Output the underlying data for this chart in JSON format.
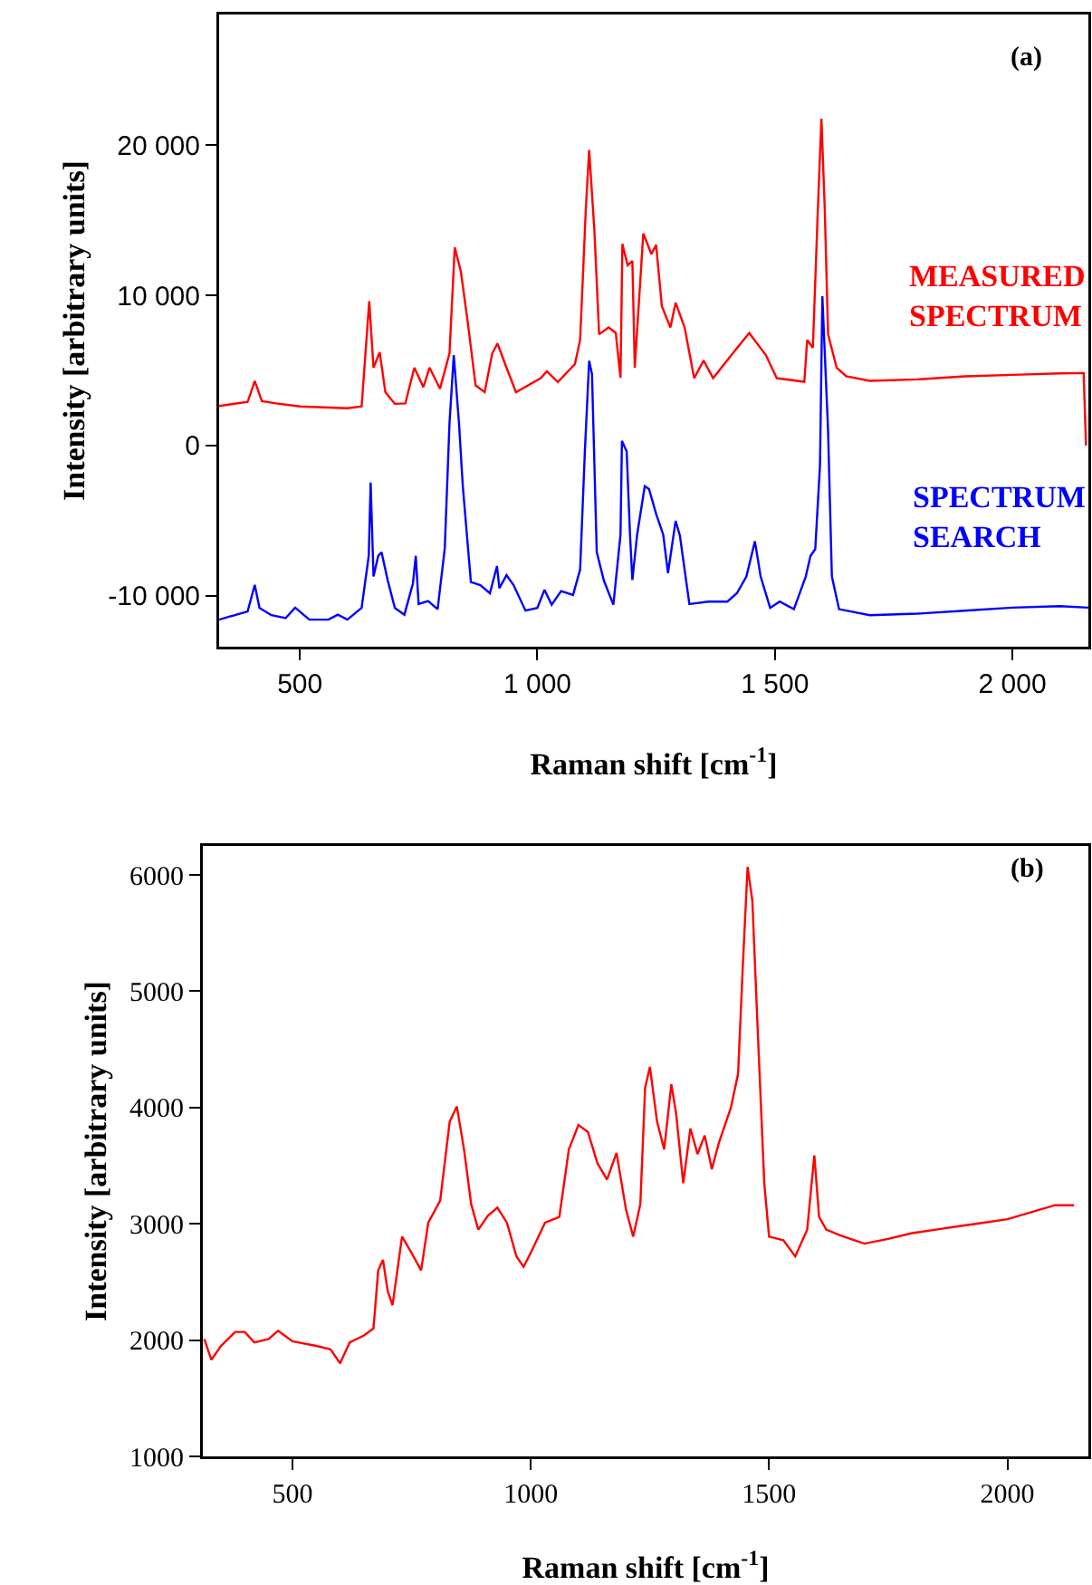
{
  "chart_data": [
    {
      "type": "line",
      "xlabel": "Raman shift [cm$^{-1}$]",
      "ylabel": "Intensity [arbitrary units]",
      "annotations": [
        "(a)"
      ],
      "xlim": [
        330,
        2160
      ],
      "ylim": [
        -13400,
        28700
      ],
      "xticks": [
        500,
        {
          "value": 1000,
          "label": "1 000"
        },
        {
          "value": 1500,
          "label": "1 500"
        },
        {
          "value": 2000,
          "label": "2 000"
        }
      ],
      "yticks": [
        {
          "value": -10000,
          "label": "-10 000"
        },
        0,
        {
          "value": 10000,
          "label": "10 000"
        },
        {
          "value": 20000,
          "label": "20 000"
        }
      ],
      "grid": false,
      "legend": false,
      "marker": "none",
      "line_style": "solid",
      "series": [
        {
          "name": "MEASURED SPECTRUM",
          "color": "#ff0000",
          "x": [
            330,
            390,
            405,
            420,
            450,
            500,
            600,
            630,
            646,
            655,
            668,
            680,
            700,
            722,
            741,
            760,
            773,
            795,
            815,
            826,
            839,
            853,
            870,
            889,
            905,
            916,
            935,
            955,
            1007,
            1020,
            1043,
            1079,
            1090,
            1102,
            1109,
            1120,
            1130,
            1150,
            1165,
            1175,
            1179,
            1190,
            1200,
            1205,
            1223,
            1240,
            1250,
            1262,
            1280,
            1291,
            1310,
            1330,
            1350,
            1370,
            1413,
            1446,
            1481,
            1504,
            1562,
            1568,
            1580,
            1590,
            1598,
            1605,
            1612,
            1630,
            1650,
            1700,
            1800,
            1900,
            2000,
            2100,
            2150,
            2155
          ],
          "values": [
            2630,
            2900,
            4300,
            2950,
            2800,
            2600,
            2480,
            2600,
            9600,
            5180,
            6200,
            3550,
            2770,
            2800,
            5180,
            3880,
            5180,
            3780,
            6140,
            13190,
            11570,
            8310,
            4000,
            3550,
            6140,
            6790,
            5180,
            3550,
            4480,
            4940,
            4220,
            5420,
            7020,
            15740,
            19680,
            14340,
            7400,
            7860,
            7500,
            4500,
            13420,
            12000,
            12290,
            5180,
            14120,
            12750,
            13360,
            9280,
            7860,
            9510,
            7860,
            4480,
            5660,
            4480,
            6200,
            7490,
            6020,
            4480,
            4240,
            7020,
            6500,
            15300,
            21760,
            15740,
            7400,
            5180,
            4610,
            4300,
            4400,
            4600,
            4700,
            4800,
            4820,
            0
          ]
        },
        {
          "name": "SPECTRUM SEARCH",
          "color": "#0000ff",
          "x": [
            330,
            390,
            405,
            415,
            440,
            470,
            490,
            520,
            560,
            580,
            600,
            630,
            645,
            649,
            655,
            665,
            672,
            685,
            700,
            720,
            738,
            744,
            750,
            770,
            790,
            805,
            815,
            824,
            835,
            843,
            860,
            880,
            900,
            915,
            920,
            935,
            950,
            975,
            1000,
            1015,
            1030,
            1050,
            1075,
            1090,
            1100,
            1109,
            1115,
            1125,
            1140,
            1160,
            1175,
            1178,
            1188,
            1195,
            1200,
            1210,
            1226,
            1235,
            1250,
            1265,
            1275,
            1291,
            1300,
            1320,
            1360,
            1400,
            1420,
            1440,
            1458,
            1470,
            1490,
            1510,
            1540,
            1565,
            1575,
            1585,
            1595,
            1600,
            1612,
            1620,
            1635,
            1700,
            1800,
            1900,
            2000,
            2100,
            2160
          ],
          "values": [
            -11600,
            -11050,
            -9280,
            -10820,
            -11300,
            -11500,
            -10800,
            -11600,
            -11600,
            -11270,
            -11600,
            -10820,
            -7350,
            -2470,
            -8730,
            -7350,
            -7110,
            -8990,
            -10820,
            -11270,
            -9190,
            -7350,
            -10560,
            -10360,
            -10900,
            -6870,
            1470,
            6020,
            1470,
            -2710,
            -9100,
            -9300,
            -9840,
            -8030,
            -9500,
            -8640,
            -9300,
            -11000,
            -10820,
            -9610,
            -10600,
            -9700,
            -9960,
            -8270,
            -370,
            5640,
            4750,
            -7100,
            -9000,
            -10600,
            -5950,
            300,
            -400,
            -5950,
            -8960,
            -5950,
            -2710,
            -2900,
            -4550,
            -5950,
            -8500,
            -5020,
            -6000,
            -10560,
            -10400,
            -10400,
            -9840,
            -8730,
            -6380,
            -8730,
            -10820,
            -10400,
            -10900,
            -8730,
            -7350,
            -6900,
            -1310,
            9940,
            1000,
            -8730,
            -10900,
            -11300,
            -11200,
            -11000,
            -10800,
            -10700,
            -10800
          ]
        }
      ]
    },
    {
      "type": "line",
      "xlabel": "Raman shift [cm$^{-1}$]",
      "ylabel": "Intensity [arbitrary units]",
      "annotations": [
        "(b)"
      ],
      "xlim": [
        312,
        2170
      ],
      "ylim": [
        1000,
        6250
      ],
      "xticks": [
        500,
        1000,
        1500,
        2000
      ],
      "yticks": [
        1000,
        2000,
        3000,
        4000,
        5000,
        6000
      ],
      "grid": false,
      "legend": false,
      "marker": "none",
      "line_style": "solid",
      "series": [
        {
          "color": "#ff0000",
          "x": [
            315,
            330,
            350,
            380,
            400,
            420,
            450,
            470,
            500,
            550,
            580,
            600,
            620,
            650,
            670,
            680,
            690,
            700,
            710,
            730,
            750,
            770,
            785,
            810,
            830,
            845,
            860,
            875,
            890,
            910,
            930,
            950,
            970,
            985,
            1000,
            1030,
            1060,
            1080,
            1100,
            1120,
            1140,
            1160,
            1180,
            1200,
            1215,
            1230,
            1240,
            1250,
            1265,
            1280,
            1295,
            1305,
            1320,
            1335,
            1350,
            1365,
            1380,
            1395,
            1420,
            1435,
            1445,
            1455,
            1465,
            1475,
            1490,
            1500,
            1530,
            1555,
            1580,
            1595,
            1605,
            1620,
            1650,
            1700,
            1750,
            1800,
            1850,
            1900,
            1950,
            2000,
            2050,
            2100,
            2140
          ],
          "values": [
            2010,
            1830,
            1950,
            2070,
            2070,
            1980,
            2010,
            2080,
            1990,
            1950,
            1920,
            1800,
            1980,
            2040,
            2100,
            2600,
            2690,
            2420,
            2300,
            2890,
            2750,
            2600,
            3010,
            3200,
            3880,
            4010,
            3640,
            3170,
            2950,
            3070,
            3140,
            3010,
            2720,
            2630,
            2750,
            3010,
            3060,
            3640,
            3850,
            3790,
            3520,
            3380,
            3610,
            3120,
            2890,
            3170,
            4170,
            4350,
            3880,
            3640,
            4200,
            3950,
            3350,
            3820,
            3600,
            3760,
            3470,
            3700,
            4000,
            4290,
            5220,
            6070,
            5780,
            4780,
            3350,
            2890,
            2860,
            2720,
            2950,
            3590,
            3060,
            2950,
            2900,
            2830,
            2870,
            2920,
            2950,
            2980,
            3010,
            3040,
            3100,
            3160,
            3160
          ]
        }
      ]
    }
  ]
}
